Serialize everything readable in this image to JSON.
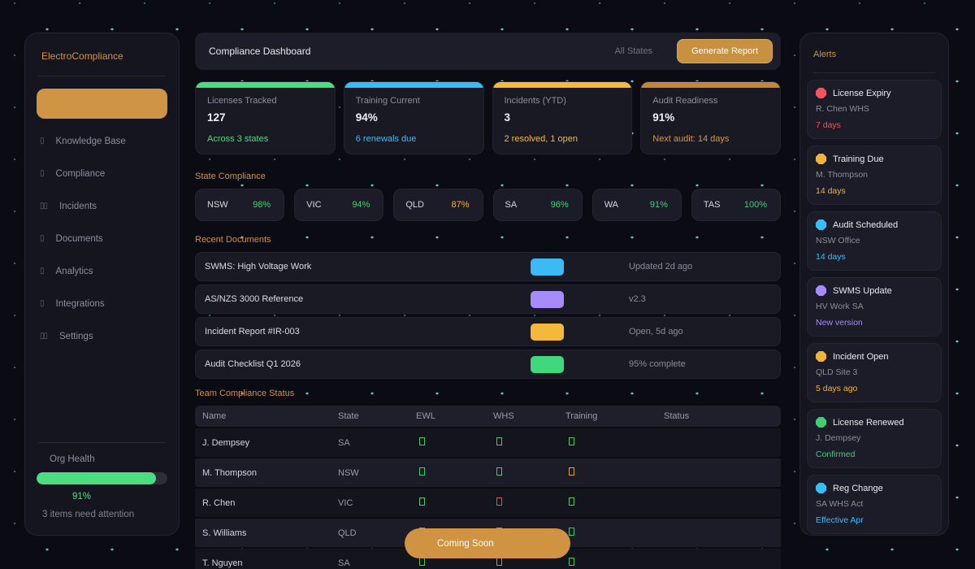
{
  "sidebar": {
    "title": "ElectroCompliance",
    "active_item_label": "",
    "items": [
      {
        "label": "Knowledge Base",
        "icon_glyph": "▯"
      },
      {
        "label": "Compliance",
        "icon_glyph": "▯"
      },
      {
        "label": "Incidents",
        "icon_glyph": "▯▯"
      },
      {
        "label": "Documents",
        "icon_glyph": "▯"
      },
      {
        "label": "Analytics",
        "icon_glyph": "▯"
      },
      {
        "label": "Integrations",
        "icon_glyph": "▯"
      },
      {
        "label": "Settings",
        "icon_glyph": "▯▯"
      }
    ],
    "org_health": {
      "label": "Org Health",
      "percent": "91%",
      "bar_color": "#4ade80",
      "note": "3 items need attention"
    }
  },
  "header": {
    "title": "Compliance Dashboard",
    "filter_label": "All States",
    "button_label": "Generate Report"
  },
  "stats": [
    {
      "label": "Licenses Tracked",
      "value": "127",
      "sub": "Across 3 states",
      "strip_color": "#4ade80",
      "sub_color": "#4ade80"
    },
    {
      "label": "Training Current",
      "value": "94%",
      "sub": "6 renewals due",
      "strip_color": "#38bdf8",
      "sub_color": "#38bdf8"
    },
    {
      "label": "Incidents (YTD)",
      "value": "3",
      "sub": "2 resolved, 1 open",
      "strip_color": "#f5b93e",
      "sub_color": "#f5b93e"
    },
    {
      "label": "Audit Readiness",
      "value": "91%",
      "sub": "Next audit: 14 days",
      "strip_color": "#c2873c",
      "sub_color": "#cf9a45"
    }
  ],
  "state_compliance": {
    "heading": "State Compliance",
    "states": [
      {
        "name": "NSW",
        "pct": "98%",
        "color": "#3ecf72"
      },
      {
        "name": "VIC",
        "pct": "94%",
        "color": "#3ecf72"
      },
      {
        "name": "QLD",
        "pct": "87%",
        "color": "#f0b33c"
      },
      {
        "name": "SA",
        "pct": "96%",
        "color": "#3ecf72"
      },
      {
        "name": "WA",
        "pct": "91%",
        "color": "#3ecf72"
      },
      {
        "name": "TAS",
        "pct": "100%",
        "color": "#3ecf72"
      }
    ]
  },
  "documents": {
    "heading": "Recent Documents",
    "rows": [
      {
        "title": "SWMS: High Voltage Work",
        "badge_color": "#3db9f5",
        "meta": "Updated 2d ago"
      },
      {
        "title": "AS/NZS 3000 Reference",
        "badge_color": "#a78bfa",
        "meta": "v2.3"
      },
      {
        "title": "Incident Report #IR-003",
        "badge_color": "#f5b83d",
        "meta": "Open, 5d ago"
      },
      {
        "title": "Audit Checklist Q1 2026",
        "badge_color": "#41d87d",
        "meta": "95% complete"
      }
    ]
  },
  "team": {
    "heading": "Team Compliance Status",
    "columns": {
      "name": "Name",
      "state": "State",
      "ewl": "EWL",
      "whs": "WHS",
      "training": "Training",
      "status": "Status"
    },
    "rows": [
      {
        "name": "J. Dempsey",
        "state": "SA",
        "ewl": "#41c871",
        "whs": "#41c871",
        "training": "#41c871",
        "status_color": "#4cdc82"
      },
      {
        "name": "M. Thompson",
        "state": "NSW",
        "ewl": "#41c871",
        "whs": "#41c871",
        "training": "#d9a43a",
        "status_color": "#f7bf3e"
      },
      {
        "name": "R. Chen",
        "state": "VIC",
        "ewl": "#41c871",
        "whs": "#e05252",
        "training": "#41c871",
        "status_color": "#f4574d"
      },
      {
        "name": "S. Williams",
        "state": "QLD",
        "ewl": "#41c871",
        "whs": "#41c871",
        "training": "#41c871",
        "status_color": "#4cdc82"
      },
      {
        "name": "T. Nguyen",
        "state": "SA",
        "ewl": "#41c871",
        "whs": "#41c871",
        "training": "#41c871",
        "status_color": "#4cdc82"
      }
    ]
  },
  "alerts": {
    "heading": "Alerts",
    "items": [
      {
        "title": "License Expiry",
        "subtitle": "R. Chen WHS",
        "value": "7 days",
        "dot_color": "#f2555f",
        "value_color": "#f2555f"
      },
      {
        "title": "Training Due",
        "subtitle": "M. Thompson",
        "value": "14 days",
        "dot_color": "#f0b33c",
        "value_color": "#f0b33c"
      },
      {
        "title": "Audit Scheduled",
        "subtitle": "NSW Office",
        "value": "14 days",
        "dot_color": "#38bdf8",
        "value_color": "#38bdf8"
      },
      {
        "title": "SWMS Update",
        "subtitle": "HV Work SA",
        "value": "New version",
        "dot_color": "#a78bfa",
        "value_color": "#a78bfa"
      },
      {
        "title": "Incident Open",
        "subtitle": "QLD Site 3",
        "value": "5 days ago",
        "dot_color": "#f0b33c",
        "value_color": "#f0b33c"
      },
      {
        "title": "License Renewed",
        "subtitle": "J. Dempsey",
        "value": "Confirmed",
        "dot_color": "#3ecf72",
        "value_color": "#3ecf72"
      },
      {
        "title": "Reg Change",
        "subtitle": "SA WHS Act",
        "value": "Effective Apr",
        "dot_color": "#38bdf8",
        "value_color": "#38bdf8"
      }
    ]
  },
  "toast": {
    "label": "Coming Soon"
  }
}
